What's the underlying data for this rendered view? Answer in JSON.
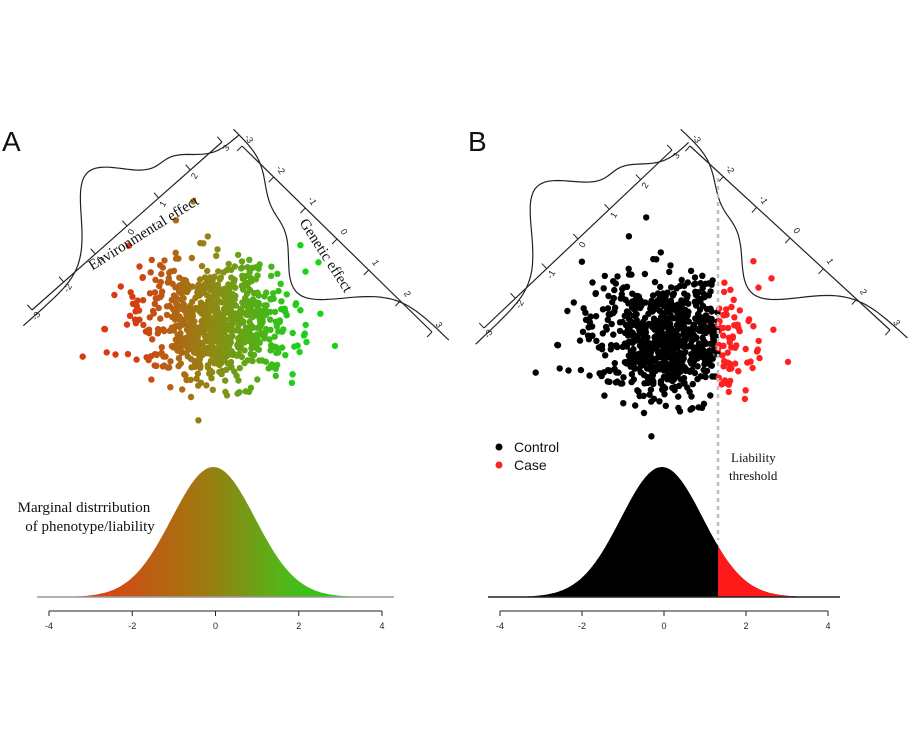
{
  "chart_data": [
    {
      "type": "scatter",
      "panel": "A",
      "panel_label": "A",
      "xaxis_label": "Environmental effect",
      "yaxis_label": "Genetic effect",
      "x_ticks": [
        "-3",
        "-2",
        "-1",
        "0",
        "1",
        "2",
        "3"
      ],
      "y_ticks": [
        "-3",
        "-2",
        "-1",
        "0",
        "1",
        "2",
        "3"
      ],
      "color_low": "#d93a12",
      "color_mid": "#8c8c14",
      "color_high": "#19d219",
      "n_points": 800,
      "density": {
        "type": "area",
        "xlim": [
          -4,
          4
        ],
        "x_ticks": [
          "-4",
          "-2",
          "0",
          "2",
          "4"
        ],
        "annotation_line1": "Marginal distrribution",
        "annotation_line2": "of phenotype/liability",
        "color_low": "#e8361a",
        "color_high": "#14d214"
      }
    },
    {
      "type": "scatter",
      "panel": "B",
      "panel_label": "B",
      "x_ticks": [
        "-3",
        "-2",
        "-1",
        "0",
        "1",
        "2",
        "3"
      ],
      "y_ticks": [
        "-3",
        "-2",
        "-1",
        "0",
        "1",
        "2",
        "3"
      ],
      "threshold": 1.3,
      "series": [
        {
          "name": "Control",
          "color": "#000000"
        },
        {
          "name": "Case",
          "color": "#ff2020"
        }
      ],
      "threshold_label_line1": "Liability",
      "threshold_label_line2": "threshold",
      "density": {
        "type": "area",
        "xlim": [
          -4,
          4
        ],
        "x_ticks": [
          "-4",
          "-2",
          "0",
          "2",
          "4"
        ],
        "color_control": "#000000",
        "color_case": "#ff1a1a"
      }
    }
  ]
}
